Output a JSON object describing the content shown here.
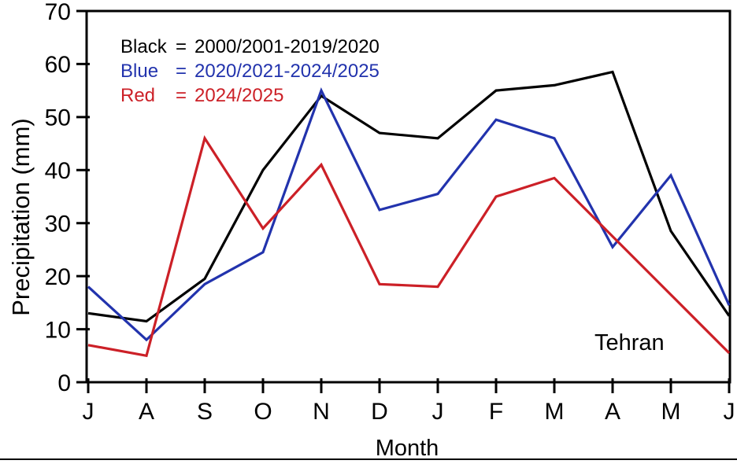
{
  "figure": {
    "y_axis_title": "Precipitation (mm)",
    "x_axis_title": "Month",
    "annotation": "Tehran"
  },
  "legend": {
    "rows": [
      {
        "name": "Black",
        "eq": "=",
        "value": "2000/2001-2019/2020",
        "color": "#000000"
      },
      {
        "name": "Blue",
        "eq": "=",
        "value": "2020/2021-2024/2025",
        "color": "#2233ad"
      },
      {
        "name": "Red",
        "eq": "=",
        "value": "2024/2025",
        "color": "#cc2027"
      }
    ]
  },
  "chart_data": {
    "type": "line",
    "title": "",
    "xlabel": "Month",
    "ylabel": "Precipitation (mm)",
    "categories": [
      "J",
      "A",
      "S",
      "O",
      "N",
      "D",
      "J",
      "F",
      "M",
      "A",
      "M",
      "J"
    ],
    "ylim": [
      0,
      70
    ],
    "ytick_step": 10,
    "grid": false,
    "legend_position": "top-left-inside",
    "annotation": "Tehran",
    "axis_color": "#000000",
    "series": [
      {
        "name": "2000/2001-2019/2020",
        "color": "#000000",
        "values": [
          13,
          11.5,
          19.5,
          40,
          54,
          47,
          46,
          55,
          56,
          58.5,
          28.5,
          12.5
        ]
      },
      {
        "name": "2020/2021-2024/2025",
        "color": "#2233ad",
        "values": [
          18,
          8,
          18.5,
          24.5,
          55,
          32.5,
          35.5,
          49.5,
          46,
          25.5,
          39,
          14.5
        ]
      },
      {
        "name": "2024/2025",
        "color": "#cc2027",
        "values": [
          7,
          5,
          46,
          29,
          41,
          18.5,
          18,
          35,
          38.5,
          27.5,
          16.5,
          5.5
        ]
      }
    ]
  }
}
